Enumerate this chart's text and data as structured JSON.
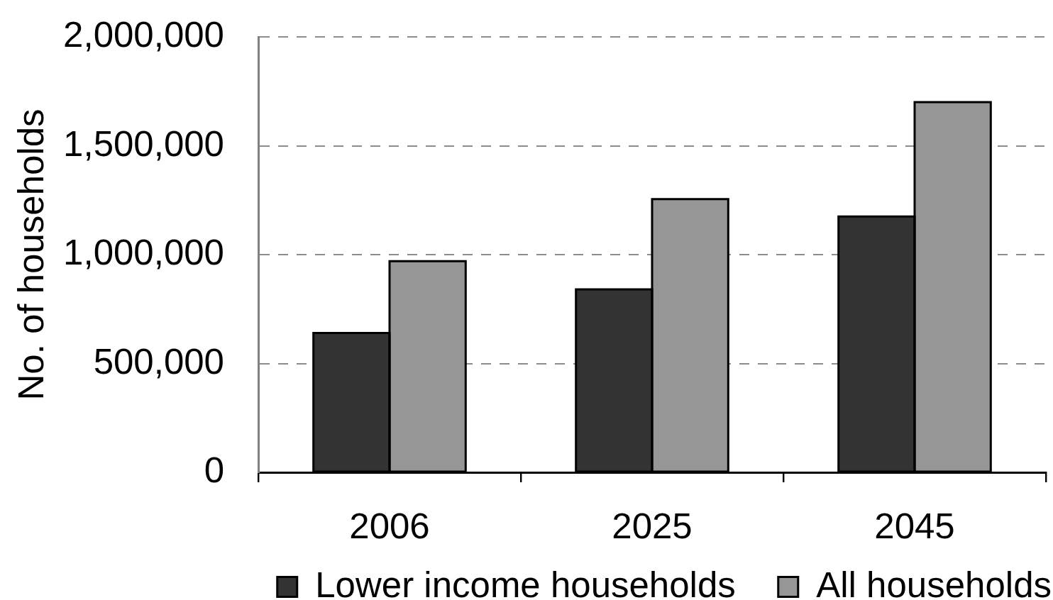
{
  "chart_data": {
    "type": "bar",
    "categories": [
      "2006",
      "2025",
      "2045"
    ],
    "series": [
      {
        "name": "Lower income households",
        "color": "#333333",
        "values": [
          640000,
          840000,
          1175000
        ]
      },
      {
        "name": "All households",
        "color": "#969696",
        "values": [
          970000,
          1255000,
          1700000
        ]
      }
    ],
    "ylabel": "No. of households",
    "ylim": [
      0,
      2000000
    ],
    "yticks": [
      0,
      {
        "value": 500000,
        "label": "500,000"
      },
      {
        "value": 1000000,
        "label": "1,000,000"
      },
      {
        "value": 1500000,
        "label": "1,500,000"
      },
      {
        "value": 2000000,
        "label": "2,000,000"
      }
    ],
    "grid": "y",
    "legend": "bottom right"
  }
}
